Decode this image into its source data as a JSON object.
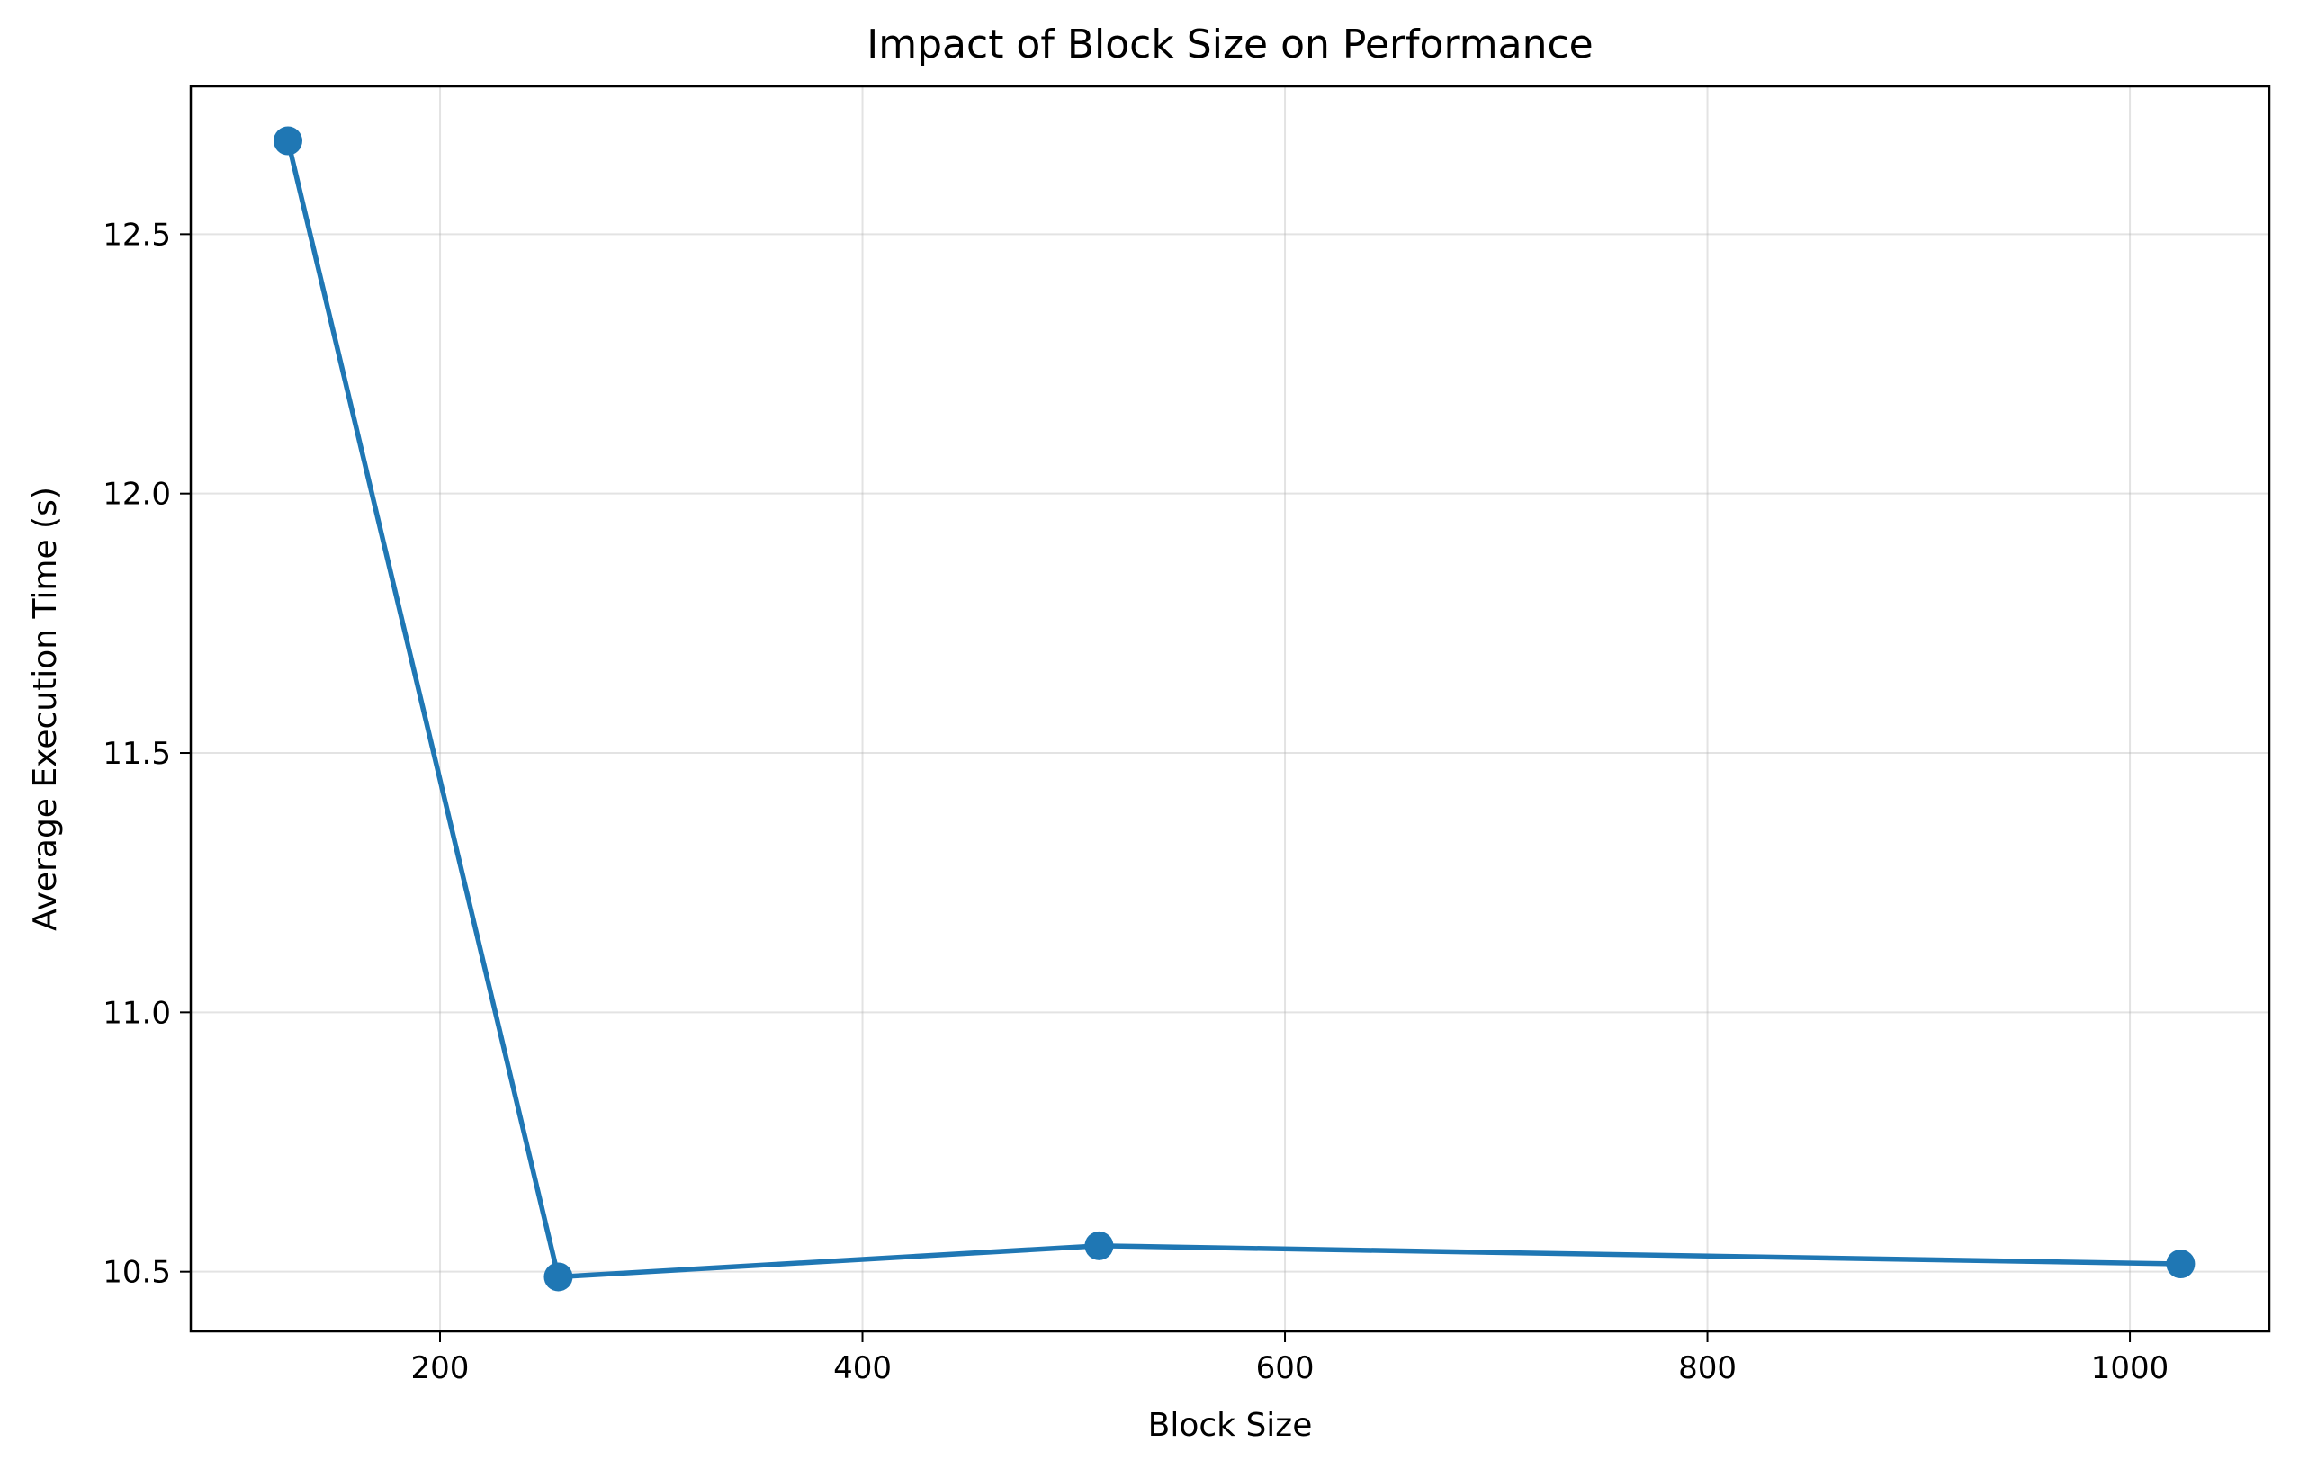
{
  "chart_data": {
    "type": "line",
    "title": "Impact of Block Size on Performance",
    "xlabel": "Block Size",
    "ylabel": "Average Execution Time (s)",
    "xlim": [
      82,
      1066
    ],
    "ylim": [
      10.385,
      12.785
    ],
    "x_ticks": [
      {
        "value": 200,
        "label": "200"
      },
      {
        "value": 400,
        "label": "400"
      },
      {
        "value": 600,
        "label": "600"
      },
      {
        "value": 800,
        "label": "800"
      },
      {
        "value": 1000,
        "label": "1000"
      }
    ],
    "y_ticks": [
      {
        "value": 10.5,
        "label": "10.5"
      },
      {
        "value": 11.0,
        "label": "11.0"
      },
      {
        "value": 11.5,
        "label": "11.5"
      },
      {
        "value": 12.0,
        "label": "12.0"
      },
      {
        "value": 12.5,
        "label": "12.5"
      }
    ],
    "grid": true,
    "series": [
      {
        "color": "#1f77b4",
        "points": [
          {
            "x": 128,
            "y": 12.68
          },
          {
            "x": 256,
            "y": 10.49
          },
          {
            "x": 512,
            "y": 10.55
          },
          {
            "x": 1024,
            "y": 10.515
          }
        ]
      }
    ]
  }
}
